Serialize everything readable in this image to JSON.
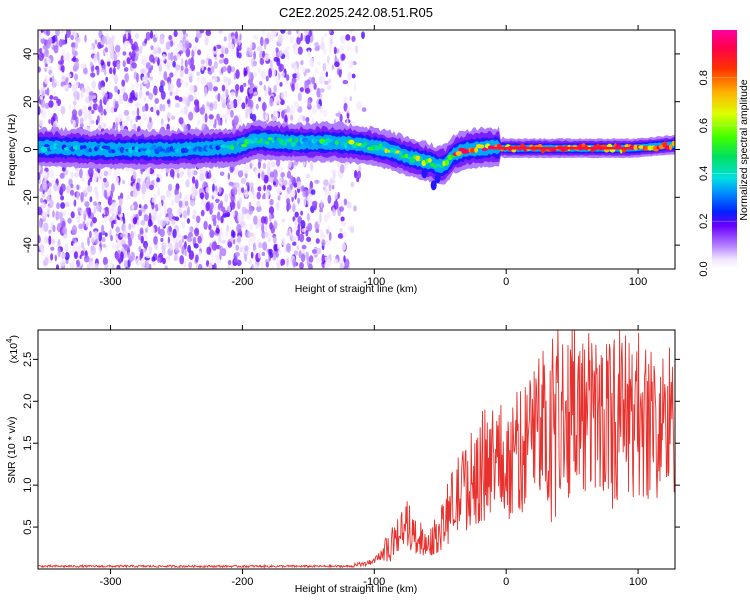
{
  "title": "C2E2.2025.242.08.51.R05",
  "chart_data": [
    {
      "type": "heatmap",
      "xlabel": "Height of straight line (km)",
      "ylabel": "Frequency (Hz)",
      "xlim": [
        -355,
        128
      ],
      "ylim": [
        -50,
        50
      ],
      "x_ticks": [
        -300,
        -200,
        -100,
        0,
        100
      ],
      "y_ticks": [
        -40,
        -20,
        0,
        20,
        40
      ],
      "grid": false,
      "colorbar": {
        "label": "Normalized spectral amplitude",
        "range": [
          0,
          1
        ],
        "ticks": [
          0.0,
          0.2,
          0.4,
          0.6,
          0.8
        ]
      },
      "noise_region_x": [
        -355,
        -120
      ],
      "ridge": [
        {
          "x": -355,
          "y": 1
        },
        {
          "x": -300,
          "y": 0
        },
        {
          "x": -250,
          "y": 0
        },
        {
          "x": -205,
          "y": 1
        },
        {
          "x": -190,
          "y": 4
        },
        {
          "x": -160,
          "y": 3
        },
        {
          "x": -130,
          "y": 3
        },
        {
          "x": -110,
          "y": 2
        },
        {
          "x": -90,
          "y": 0
        },
        {
          "x": -75,
          "y": -3
        },
        {
          "x": -60,
          "y": -5
        },
        {
          "x": -50,
          "y": -7
        },
        {
          "x": -45,
          "y": -6
        },
        {
          "x": -40,
          "y": -2
        },
        {
          "x": -30,
          "y": 0
        },
        {
          "x": -10,
          "y": 1
        },
        {
          "x": 0,
          "y": 0.5
        },
        {
          "x": 50,
          "y": 0.5
        },
        {
          "x": 95,
          "y": 0.5
        },
        {
          "x": 128,
          "y": 2
        }
      ]
    },
    {
      "type": "line",
      "xlabel": "Height of straight line (km)",
      "ylabel": "SNR (10 * v/v)",
      "y_multiplier_label": "(x10",
      "y_multiplier_exp": "4",
      "y_multiplier_close": ")",
      "xlim": [
        -355,
        128
      ],
      "ylim": [
        0,
        2.85
      ],
      "x_ticks": [
        -300,
        -200,
        -100,
        0,
        100
      ],
      "y_ticks": [
        0.5,
        1.0,
        1.5,
        2.0,
        2.5
      ],
      "grid": false,
      "color": "#e8302c",
      "envelope": [
        {
          "x": -355,
          "y": 0.02
        },
        {
          "x": -120,
          "y": 0.03
        },
        {
          "x": -100,
          "y": 0.08
        },
        {
          "x": -85,
          "y": 0.35
        },
        {
          "x": -75,
          "y": 0.55
        },
        {
          "x": -70,
          "y": 0.4
        },
        {
          "x": -60,
          "y": 0.3
        },
        {
          "x": -50,
          "y": 0.45
        },
        {
          "x": -40,
          "y": 0.8
        },
        {
          "x": -30,
          "y": 1.0
        },
        {
          "x": -20,
          "y": 1.2
        },
        {
          "x": -10,
          "y": 1.3
        },
        {
          "x": 0,
          "y": 1.25
        },
        {
          "x": 10,
          "y": 1.4
        },
        {
          "x": 20,
          "y": 1.6
        },
        {
          "x": 30,
          "y": 1.75
        },
        {
          "x": 40,
          "y": 1.9
        },
        {
          "x": 60,
          "y": 1.85
        },
        {
          "x": 80,
          "y": 1.8
        },
        {
          "x": 100,
          "y": 1.85
        },
        {
          "x": 115,
          "y": 1.7
        },
        {
          "x": 128,
          "y": 1.8
        }
      ]
    }
  ]
}
